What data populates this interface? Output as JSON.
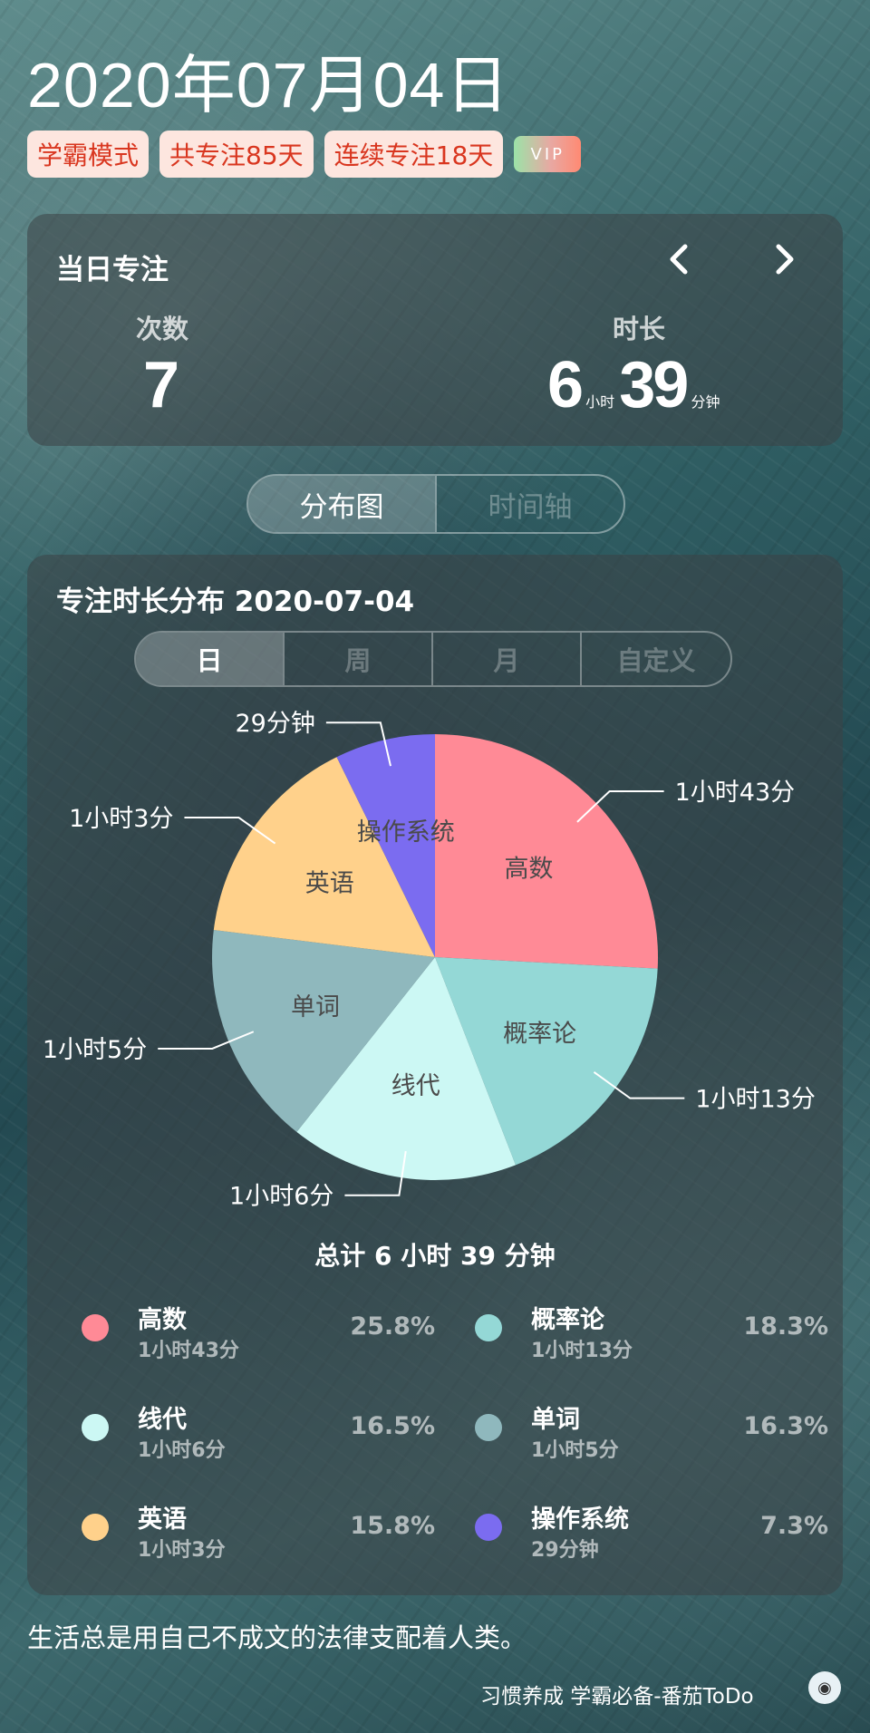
{
  "header": {
    "date": "2020年07月04日",
    "badges": [
      "学霸模式",
      "共专注85天",
      "连续专注18天"
    ],
    "vip": "VIP"
  },
  "daily": {
    "title": "当日专注",
    "count_label": "次数",
    "count_value": "7",
    "duration_label": "时长",
    "hours": "6",
    "hours_unit": "小时",
    "minutes": "39",
    "minutes_unit": "分钟",
    "prev_icon": "chevron-left-icon",
    "next_icon": "chevron-right-icon"
  },
  "view_toggle": {
    "selected": "分布图",
    "other": "时间轴"
  },
  "distribution": {
    "title": "专注时长分布  2020-07-04",
    "tabs": [
      "日",
      "周",
      "月",
      "自定义"
    ],
    "selected_tab": "日",
    "total": "总计 6 小时 39 分钟"
  },
  "chart_data": {
    "type": "pie",
    "slices": [
      {
        "name": "高数",
        "duration": "1小时43分",
        "minutes": 103,
        "percent": "25.8%",
        "color": "#ff8a96"
      },
      {
        "name": "概率论",
        "duration": "1小时13分",
        "minutes": 73,
        "percent": "18.3%",
        "color": "#94d8d6"
      },
      {
        "name": "线代",
        "duration": "1小时6分",
        "minutes": 66,
        "percent": "16.5%",
        "color": "#ccf8f4"
      },
      {
        "name": "单词",
        "duration": "1小时5分",
        "minutes": 65,
        "percent": "16.3%",
        "color": "#8fb8bd"
      },
      {
        "name": "英语",
        "duration": "1小时3分",
        "minutes": 63,
        "percent": "15.8%",
        "color": "#ffd18b"
      },
      {
        "name": "操作系统",
        "duration": "29分钟",
        "minutes": 29,
        "percent": "7.3%",
        "color": "#7b6cf0"
      }
    ]
  },
  "legend": [
    {
      "name": "高数",
      "duration": "1小时43分",
      "percent": "25.8%",
      "color": "#ff8a96"
    },
    {
      "name": "概率论",
      "duration": "1小时13分",
      "percent": "18.3%",
      "color": "#94d8d6"
    },
    {
      "name": "线代",
      "duration": "1小时6分",
      "percent": "16.5%",
      "color": "#ccf8f4"
    },
    {
      "name": "单词",
      "duration": "1小时5分",
      "percent": "16.3%",
      "color": "#8fb8bd"
    },
    {
      "name": "英语",
      "duration": "1小时3分",
      "percent": "15.8%",
      "color": "#ffd18b"
    },
    {
      "name": "操作系统",
      "duration": "29分钟",
      "percent": "7.3%",
      "color": "#7b6cf0"
    }
  ],
  "footer": {
    "quote": "生活总是用自己不成文的法律支配着人类。",
    "slogan": "习惯养成 学霸必备-番茄ToDo",
    "icon": "tomato-logo-icon"
  }
}
